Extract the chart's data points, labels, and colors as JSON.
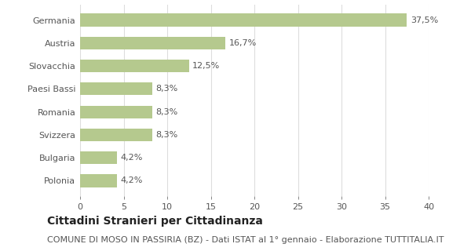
{
  "categories": [
    "Polonia",
    "Bulgaria",
    "Svizzera",
    "Romania",
    "Paesi Bassi",
    "Slovacchia",
    "Austria",
    "Germania"
  ],
  "values": [
    4.2,
    4.2,
    8.3,
    8.3,
    8.3,
    12.5,
    16.7,
    37.5
  ],
  "labels": [
    "4,2%",
    "4,2%",
    "8,3%",
    "8,3%",
    "8,3%",
    "12,5%",
    "16,7%",
    "37,5%"
  ],
  "bar_color": "#b5c98e",
  "background_color": "#ffffff",
  "plot_bg_color": "#ffffff",
  "title": "Cittadini Stranieri per Cittadinanza",
  "subtitle": "COMUNE DI MOSO IN PASSIRIA (BZ) - Dati ISTAT al 1° gennaio - Elaborazione TUTTITALIA.IT",
  "xlim": [
    0,
    40
  ],
  "xticks": [
    0,
    5,
    10,
    15,
    20,
    25,
    30,
    35,
    40
  ],
  "title_fontsize": 10,
  "subtitle_fontsize": 8,
  "label_fontsize": 8,
  "tick_fontsize": 8,
  "ytick_fontsize": 8,
  "grid_color": "#dddddd",
  "text_color": "#555555",
  "title_color": "#222222"
}
